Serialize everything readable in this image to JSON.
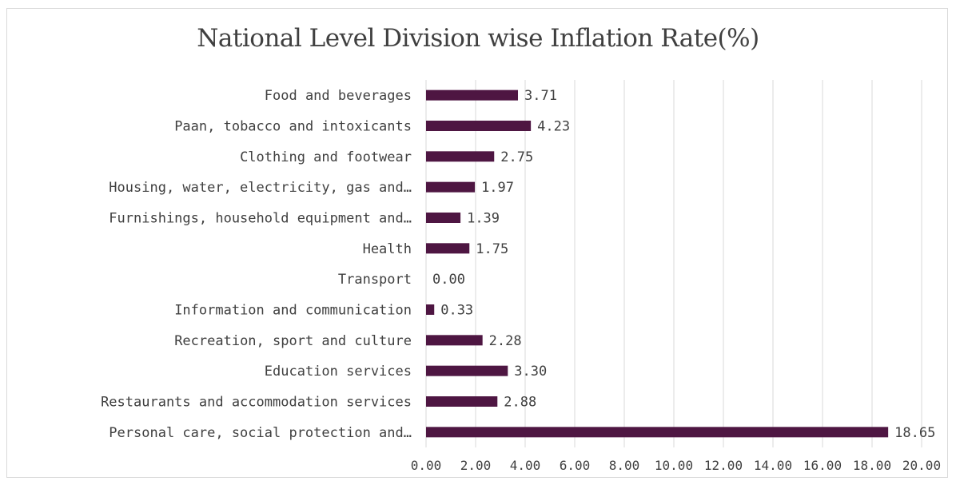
{
  "chart_data": {
    "type": "bar",
    "orientation": "horizontal",
    "title": "National Level Division wise Inflation Rate(%)",
    "categories": [
      "Food and beverages",
      "Paan, tobacco and intoxicants",
      "Clothing and footwear",
      "Housing, water, electricity, gas and…",
      "Furnishings, household equipment and…",
      "Health",
      "Transport",
      "Information and communication",
      "Recreation, sport and culture",
      "Education services",
      "Restaurants and accommodation services",
      "Personal care, social protection and…"
    ],
    "values": [
      3.71,
      4.23,
      2.75,
      1.97,
      1.39,
      1.75,
      0.0,
      0.33,
      2.28,
      3.3,
      2.88,
      18.65
    ],
    "value_labels": [
      "3.71",
      "4.23",
      "2.75",
      "1.97",
      "1.39",
      "1.75",
      "0.00",
      "0.33",
      "2.28",
      "3.30",
      "2.88",
      "18.65"
    ],
    "xticks": [
      0,
      2,
      4,
      6,
      8,
      10,
      12,
      14,
      16,
      18,
      20
    ],
    "xtick_labels": [
      "0.00",
      "2.00",
      "4.00",
      "6.00",
      "8.00",
      "10.00",
      "12.00",
      "14.00",
      "16.00",
      "18.00",
      "20.00"
    ],
    "xlim": [
      0,
      20
    ],
    "xlabel": "",
    "ylabel": "",
    "grid": "vertical",
    "legend": "none",
    "bar_color": "#4e1642",
    "grid_color": "#d9d9d9"
  }
}
